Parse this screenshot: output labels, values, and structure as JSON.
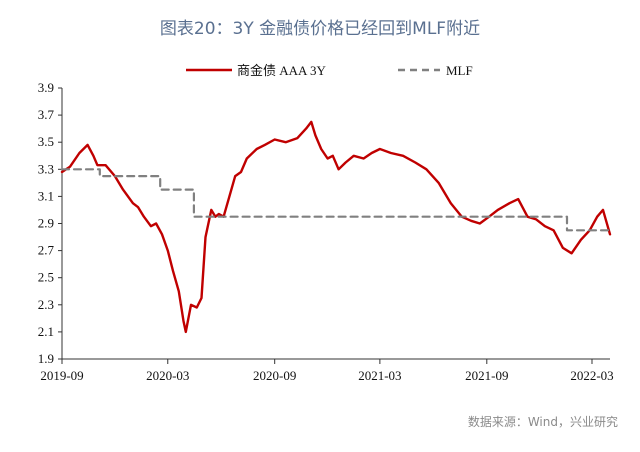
{
  "title": "图表20：3Y 金融债价格已经回到MLF附近",
  "source": "数据来源：Wind，兴业研究",
  "chart_data": {
    "type": "line",
    "title": "图表20：3Y 金融债价格已经回到MLF附近",
    "xlabel": "",
    "ylabel": "",
    "ylim": [
      1.9,
      3.9
    ],
    "yticks": [
      1.9,
      2.1,
      2.3,
      2.5,
      2.7,
      2.9,
      3.1,
      3.3,
      3.5,
      3.7,
      3.9
    ],
    "xlim": [
      "2019-09",
      "2022-04"
    ],
    "xticks": [
      "2019-09",
      "2020-03",
      "2020-09",
      "2021-03",
      "2021-09",
      "2022-03"
    ],
    "grid": false,
    "legend_position": "top",
    "series": [
      {
        "name": "商金债 AAA 3Y",
        "color": "#c00000",
        "style": "solid",
        "x": [
          "2019-09-01",
          "2019-09-15",
          "2019-10-01",
          "2019-10-15",
          "2019-10-25",
          "2019-11-01",
          "2019-11-15",
          "2019-12-01",
          "2019-12-15",
          "2020-01-01",
          "2020-01-10",
          "2020-01-20",
          "2020-02-01",
          "2020-02-10",
          "2020-02-20",
          "2020-03-01",
          "2020-03-10",
          "2020-03-20",
          "2020-03-28",
          "2020-04-01",
          "2020-04-10",
          "2020-04-20",
          "2020-04-28",
          "2020-05-05",
          "2020-05-15",
          "2020-05-22",
          "2020-05-28",
          "2020-06-05",
          "2020-06-15",
          "2020-06-25",
          "2020-07-05",
          "2020-07-15",
          "2020-08-01",
          "2020-08-15",
          "2020-09-01",
          "2020-09-20",
          "2020-10-10",
          "2020-10-25",
          "2020-11-03",
          "2020-11-10",
          "2020-11-20",
          "2020-12-01",
          "2020-12-10",
          "2020-12-20",
          "2021-01-01",
          "2021-01-15",
          "2021-02-01",
          "2021-02-15",
          "2021-03-01",
          "2021-03-20",
          "2021-04-10",
          "2021-05-01",
          "2021-05-20",
          "2021-06-10",
          "2021-07-01",
          "2021-07-20",
          "2021-08-05",
          "2021-08-20",
          "2021-09-05",
          "2021-09-20",
          "2021-10-10",
          "2021-10-25",
          "2021-11-10",
          "2021-11-25",
          "2021-12-10",
          "2021-12-25",
          "2022-01-10",
          "2022-01-25",
          "2022-02-10",
          "2022-02-25",
          "2022-03-10",
          "2022-03-20",
          "2022-04-01"
        ],
        "values": [
          3.28,
          3.32,
          3.42,
          3.48,
          3.4,
          3.33,
          3.33,
          3.25,
          3.15,
          3.05,
          3.02,
          2.95,
          2.88,
          2.9,
          2.82,
          2.7,
          2.55,
          2.4,
          2.18,
          2.1,
          2.3,
          2.28,
          2.35,
          2.8,
          3.0,
          2.95,
          2.97,
          2.95,
          3.1,
          3.25,
          3.28,
          3.38,
          3.45,
          3.48,
          3.52,
          3.5,
          3.53,
          3.6,
          3.65,
          3.55,
          3.45,
          3.38,
          3.4,
          3.3,
          3.35,
          3.4,
          3.38,
          3.42,
          3.45,
          3.42,
          3.4,
          3.35,
          3.3,
          3.2,
          3.05,
          2.95,
          2.92,
          2.9,
          2.95,
          3.0,
          3.05,
          3.08,
          2.95,
          2.93,
          2.88,
          2.85,
          2.72,
          2.68,
          2.78,
          2.85,
          2.95,
          3.0,
          2.82
        ]
      },
      {
        "name": "MLF",
        "color": "#808080",
        "style": "dashed",
        "x": [
          "2019-09-01",
          "2019-11-05",
          "2019-11-05",
          "2020-02-17",
          "2020-02-17",
          "2020-04-15",
          "2020-04-15",
          "2020-06-15",
          "2020-06-15",
          "2022-01-17",
          "2022-01-17",
          "2022-04-01"
        ],
        "values": [
          3.3,
          3.3,
          3.25,
          3.25,
          3.15,
          3.15,
          2.95,
          2.95,
          2.95,
          2.95,
          2.85,
          2.85
        ]
      }
    ]
  }
}
